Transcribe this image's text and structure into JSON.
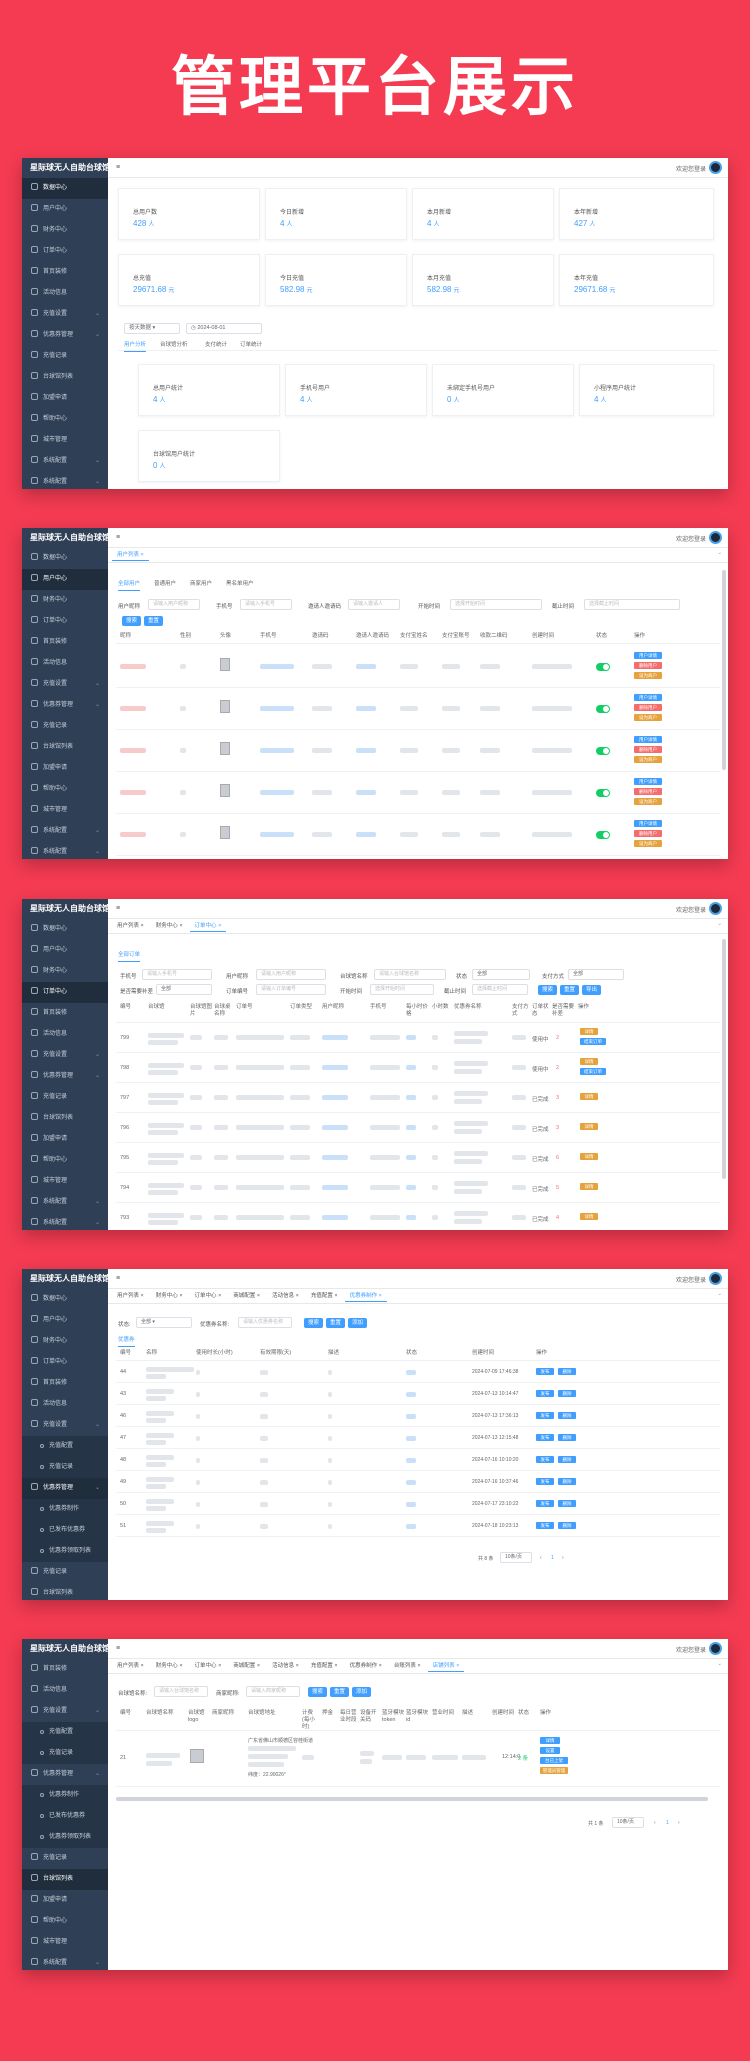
{
  "hero": {
    "title": "管理平台展示"
  },
  "common": {
    "logo": "星际球无人自助台球馆",
    "welcome": "欢迎您登录",
    "menu_icon": "≡",
    "tab_close": "×"
  },
  "sidebar_a": [
    "数据中心",
    "用户中心",
    "财务中心",
    "订单中心",
    "首页装修",
    "活动信息",
    "充值设置",
    "优惠券管理",
    "充值记录",
    "台球馆列表",
    "加盟申请",
    "帮助中心",
    "城市管理",
    "系统配置",
    "系统配置"
  ],
  "sidebar_e": [
    "首页装修",
    "活动信息",
    "充值设置",
    "充值配置",
    "充值记录",
    "优惠券管理",
    "优惠券制作",
    "已发布优惠券",
    "优惠券领取列表",
    "充值记录",
    "台球馆列表",
    "加盟申请",
    "帮助中心",
    "城市管理",
    "系统配置"
  ],
  "panel1": {
    "stats_row1": [
      {
        "label": "总用户数",
        "value": "428",
        "unit": "人"
      },
      {
        "label": "今日新增",
        "value": "4",
        "unit": "人"
      },
      {
        "label": "本月新增",
        "value": "4",
        "unit": "人"
      },
      {
        "label": "本年新增",
        "value": "427",
        "unit": "人"
      }
    ],
    "stats_row2": [
      {
        "label": "总充值",
        "value": "29671.68",
        "unit": "元"
      },
      {
        "label": "今日充值",
        "value": "582.98",
        "unit": "元"
      },
      {
        "label": "本月充值",
        "value": "582.98",
        "unit": "元"
      },
      {
        "label": "本年充值",
        "value": "29671.68",
        "unit": "元"
      }
    ],
    "select_label": "按天数据",
    "date_value": "2024-08-01",
    "subtabs": [
      "用户分析",
      "台球馆分析",
      "支付统计",
      "订单统计"
    ],
    "stats_row3": [
      {
        "label": "总用户统计",
        "value": "4",
        "unit": "人"
      },
      {
        "label": "手机号用户",
        "value": "4",
        "unit": "人"
      },
      {
        "label": "未绑定手机号用户",
        "value": "0",
        "unit": "人"
      },
      {
        "label": "小程序用户统计",
        "value": "4",
        "unit": "人"
      }
    ],
    "stats_row4": [
      {
        "label": "台球馆用户统计",
        "value": "0",
        "unit": "人"
      }
    ]
  },
  "panel2": {
    "tab": "用户列表",
    "subtabs": [
      "全部用户",
      "普通用户",
      "商家用户",
      "黑名单用户"
    ],
    "filters": [
      {
        "label": "用户昵称",
        "placeholder": "请输入用户昵称"
      },
      {
        "label": "手机号",
        "placeholder": "请输入手机号"
      },
      {
        "label": "邀请人邀请码",
        "placeholder": "请输入邀请人"
      },
      {
        "label": "开始时间",
        "placeholder": "选择开始时间"
      },
      {
        "label": "截止时间",
        "placeholder": "选择截止时间"
      }
    ],
    "search_btn": "搜索",
    "reset_btn": "重置",
    "columns": [
      "昵称",
      "性别",
      "头像",
      "手机号",
      "邀请码",
      "邀请人邀请码",
      "支付宝姓名",
      "支付宝账号",
      "收款二维码",
      "创建时间",
      "状态",
      "操作"
    ],
    "actions": [
      "用户详情",
      "删除用户",
      "设为商户"
    ]
  },
  "panel3": {
    "tabs": [
      "用户列表",
      "财务中心",
      "订单中心"
    ],
    "subtab": "全部订单",
    "filters": [
      {
        "label": "手机号",
        "placeholder": "请输入手机号"
      },
      {
        "label": "用户昵称",
        "placeholder": "请输入用户昵称"
      },
      {
        "label": "台球馆名称",
        "placeholder": "请输入台球馆名称"
      },
      {
        "label": "状态",
        "placeholder": "全部"
      },
      {
        "label": "支付方式",
        "placeholder": "全部"
      },
      {
        "label": "是否需要补差",
        "placeholder": "全部"
      },
      {
        "label": "订单编号",
        "placeholder": "请输入订单编号"
      },
      {
        "label": "开始时间",
        "placeholder": "选择开始时间"
      },
      {
        "label": "截止时间",
        "placeholder": "选择截止时间"
      }
    ],
    "buttons": [
      "搜索",
      "重置",
      "导出"
    ],
    "columns": [
      "编号",
      "台球馆",
      "台球馆图片",
      "台球桌名称",
      "订单号",
      "订单类型",
      "用户昵称",
      "手机号",
      "每小时价格",
      "小时数",
      "优惠券名称",
      "支付方式",
      "订单状态",
      "是否需要补差",
      "操作"
    ],
    "rows": [
      {
        "id": "799",
        "status": "使用中",
        "count": "2"
      },
      {
        "id": "798",
        "status": "使用中",
        "count": "2"
      },
      {
        "id": "797",
        "status": "已完成",
        "count": "3"
      },
      {
        "id": "796",
        "status": "已完成",
        "count": "3"
      },
      {
        "id": "795",
        "status": "已完成",
        "count": "6"
      },
      {
        "id": "794",
        "status": "已完成",
        "count": "5"
      },
      {
        "id": "793",
        "status": "已完成",
        "count": "4"
      }
    ],
    "row_actions": [
      "详情",
      "结束订单"
    ]
  },
  "panel4": {
    "tabs": [
      "用户列表",
      "财务中心",
      "订单中心",
      "商城配置",
      "活动信息",
      "充值配置",
      "优惠券制作"
    ],
    "status_label": "状态:",
    "status_value": "全部",
    "name_label": "优惠券名称:",
    "name_placeholder": "请输入优惠券名称",
    "buttons": [
      "搜索",
      "重置",
      "添加"
    ],
    "subtab": "优惠券",
    "columns": [
      "编号",
      "名称",
      "使用时长(小时)",
      "有效期限(天)",
      "描述",
      "状态",
      "创建时间",
      "操作"
    ],
    "rows": [
      {
        "id": "44",
        "time": "2024-07-09 17:46:38"
      },
      {
        "id": "43",
        "time": "2024-07-13 10:14:47"
      },
      {
        "id": "46",
        "time": "2024-07-13 17:36:13"
      },
      {
        "id": "47",
        "time": "2024-07-13 12:15:48"
      },
      {
        "id": "48",
        "time": "2024-07-16 10:10:20"
      },
      {
        "id": "49",
        "time": "2024-07-16 10:37:46"
      },
      {
        "id": "50",
        "time": "2024-07-17 23:10:22"
      },
      {
        "id": "51",
        "time": "2024-07-18 10:23:13"
      }
    ],
    "row_actions": [
      "发布",
      "删除"
    ],
    "pager_total": "共 8 条",
    "pager_size": "10条/页",
    "pager_page": "1"
  },
  "panel5": {
    "tabs": [
      "用户列表",
      "财务中心",
      "订单中心",
      "商城配置",
      "活动信息",
      "充值配置",
      "优惠券制作",
      "台账列表",
      "店铺列表"
    ],
    "filters": [
      {
        "label": "台球馆名称:",
        "placeholder": "请输入台球馆名称"
      },
      {
        "label": "商家昵称:",
        "placeholder": "请输入商家昵称"
      }
    ],
    "buttons": [
      "搜索",
      "重置",
      "添加"
    ],
    "columns": [
      "编号",
      "台球馆名称",
      "台球馆logo",
      "商家昵称",
      "台球馆地址",
      "计费(每小时)",
      "押金",
      "每日营业时段",
      "设备开关码",
      "蓝牙模块token",
      "蓝牙模块id",
      "营业时间",
      "描述",
      "创建时间",
      "状态",
      "操作"
    ],
    "row": {
      "id": "21",
      "address": "广东省佛山市顺德区容桂街道",
      "coords": "纬度：22.90026°",
      "created": "12:14:0",
      "status_count": "2 条"
    },
    "row_actions": [
      "详情",
      "设置",
      "台已上架",
      "管理员管理"
    ],
    "pager_total": "共 1 条",
    "pager_size": "10条/页",
    "pager_page": "1"
  },
  "colors": {
    "accent": "#409eff",
    "brand_bg": "#f43b52",
    "sidebar": "#2f3f55",
    "danger": "#f56c6c",
    "warning": "#e6a23c",
    "success": "#13ce66"
  }
}
